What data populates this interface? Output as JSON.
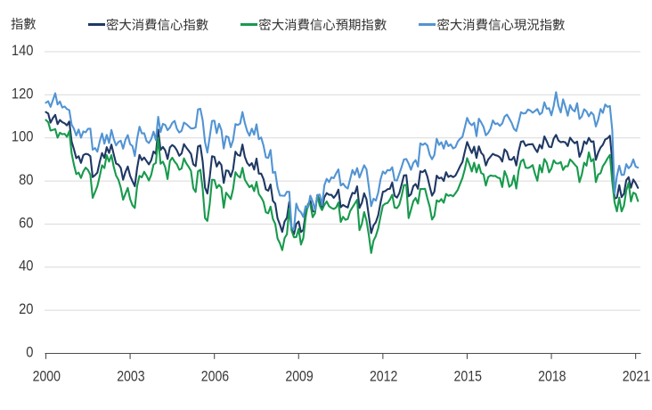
{
  "chart_data": {
    "type": "line",
    "title": "",
    "ylabel": "指數",
    "xlabel": "",
    "frequency": "monthly",
    "x_start": "2000-01",
    "x_end": "2021-02",
    "x_months": [
      "2000-01",
      "2000-02",
      "2000-03",
      "2000-04",
      "2000-05",
      "2000-06",
      "2000-07",
      "2000-08",
      "2000-09",
      "2000-10",
      "2000-11",
      "2000-12",
      "2001-01",
      "2001-02",
      "2001-03",
      "2001-04",
      "2001-05",
      "2001-06",
      "2001-07",
      "2001-08",
      "2001-09",
      "2001-10",
      "2001-11",
      "2001-12",
      "2002-01",
      "2002-02",
      "2002-03",
      "2002-04",
      "2002-05",
      "2002-06",
      "2002-07",
      "2002-08",
      "2002-09",
      "2002-10",
      "2002-11",
      "2002-12",
      "2003-01",
      "2003-02",
      "2003-03",
      "2003-04",
      "2003-05",
      "2003-06",
      "2003-07",
      "2003-08",
      "2003-09",
      "2003-10",
      "2003-11",
      "2003-12",
      "2004-01",
      "2004-02",
      "2004-03",
      "2004-04",
      "2004-05",
      "2004-06",
      "2004-07",
      "2004-08",
      "2004-09",
      "2004-10",
      "2004-11",
      "2004-12",
      "2005-01",
      "2005-02",
      "2005-03",
      "2005-04",
      "2005-05",
      "2005-06",
      "2005-07",
      "2005-08",
      "2005-09",
      "2005-10",
      "2005-11",
      "2005-12",
      "2006-01",
      "2006-02",
      "2006-03",
      "2006-04",
      "2006-05",
      "2006-06",
      "2006-07",
      "2006-08",
      "2006-09",
      "2006-10",
      "2006-11",
      "2006-12",
      "2007-01",
      "2007-02",
      "2007-03",
      "2007-04",
      "2007-05",
      "2007-06",
      "2007-07",
      "2007-08",
      "2007-09",
      "2007-10",
      "2007-11",
      "2007-12",
      "2008-01",
      "2008-02",
      "2008-03",
      "2008-04",
      "2008-05",
      "2008-06",
      "2008-07",
      "2008-08",
      "2008-09",
      "2008-10",
      "2008-11",
      "2008-12",
      "2009-01",
      "2009-02",
      "2009-03",
      "2009-04",
      "2009-05",
      "2009-06",
      "2009-07",
      "2009-08",
      "2009-09",
      "2009-10",
      "2009-11",
      "2009-12",
      "2010-01",
      "2010-02",
      "2010-03",
      "2010-04",
      "2010-05",
      "2010-06",
      "2010-07",
      "2010-08",
      "2010-09",
      "2010-10",
      "2010-11",
      "2010-12",
      "2011-01",
      "2011-02",
      "2011-03",
      "2011-04",
      "2011-05",
      "2011-06",
      "2011-07",
      "2011-08",
      "2011-09",
      "2011-10",
      "2011-11",
      "2011-12",
      "2012-01",
      "2012-02",
      "2012-03",
      "2012-04",
      "2012-05",
      "2012-06",
      "2012-07",
      "2012-08",
      "2012-09",
      "2012-10",
      "2012-11",
      "2012-12",
      "2013-01",
      "2013-02",
      "2013-03",
      "2013-04",
      "2013-05",
      "2013-06",
      "2013-07",
      "2013-08",
      "2013-09",
      "2013-10",
      "2013-11",
      "2013-12",
      "2014-01",
      "2014-02",
      "2014-03",
      "2014-04",
      "2014-05",
      "2014-06",
      "2014-07",
      "2014-08",
      "2014-09",
      "2014-10",
      "2014-11",
      "2014-12",
      "2015-01",
      "2015-02",
      "2015-03",
      "2015-04",
      "2015-05",
      "2015-06",
      "2015-07",
      "2015-08",
      "2015-09",
      "2015-10",
      "2015-11",
      "2015-12",
      "2016-01",
      "2016-02",
      "2016-03",
      "2016-04",
      "2016-05",
      "2016-06",
      "2016-07",
      "2016-08",
      "2016-09",
      "2016-10",
      "2016-11",
      "2016-12",
      "2017-01",
      "2017-02",
      "2017-03",
      "2017-04",
      "2017-05",
      "2017-06",
      "2017-07",
      "2017-08",
      "2017-09",
      "2017-10",
      "2017-11",
      "2017-12",
      "2018-01",
      "2018-02",
      "2018-03",
      "2018-04",
      "2018-05",
      "2018-06",
      "2018-07",
      "2018-08",
      "2018-09",
      "2018-10",
      "2018-11",
      "2018-12",
      "2019-01",
      "2019-02",
      "2019-03",
      "2019-04",
      "2019-05",
      "2019-06",
      "2019-07",
      "2019-08",
      "2019-09",
      "2019-10",
      "2019-11",
      "2019-12",
      "2020-01",
      "2020-02",
      "2020-03",
      "2020-04",
      "2020-05",
      "2020-06",
      "2020-07",
      "2020-08",
      "2020-09",
      "2020-10",
      "2020-11",
      "2020-12",
      "2021-01",
      "2021-02"
    ],
    "x_tick_labels": [
      "2000",
      "2003",
      "2006",
      "2009",
      "2012",
      "2015",
      "2018",
      "2021"
    ],
    "y_ticks": [
      0,
      20,
      40,
      60,
      80,
      100,
      120,
      140
    ],
    "ylim": [
      0,
      140
    ],
    "grid": "horizontal",
    "legend_position": "top",
    "series": [
      {
        "name": "密大消費信心指數",
        "slug": "sentiment-index",
        "color": "#1F3864",
        "values": [
          112.0,
          111.3,
          107.1,
          109.2,
          110.7,
          106.4,
          108.3,
          107.3,
          106.8,
          105.8,
          107.6,
          98.4,
          94.7,
          90.6,
          91.5,
          88.4,
          92.0,
          92.6,
          92.4,
          91.5,
          81.8,
          82.7,
          83.9,
          88.8,
          93.0,
          90.7,
          95.7,
          93.0,
          96.9,
          92.4,
          88.1,
          87.6,
          86.1,
          80.6,
          84.2,
          86.7,
          82.4,
          79.9,
          77.6,
          86.0,
          92.1,
          89.7,
          90.9,
          89.3,
          87.7,
          89.6,
          93.7,
          92.6,
          103.8,
          94.4,
          95.8,
          94.2,
          90.2,
          95.6,
          96.7,
          95.9,
          94.2,
          91.7,
          92.8,
          97.1,
          95.5,
          94.1,
          92.6,
          87.7,
          86.9,
          96.0,
          96.5,
          89.1,
          76.9,
          74.2,
          81.6,
          91.5,
          91.2,
          86.7,
          88.9,
          87.4,
          79.1,
          84.9,
          84.7,
          82.0,
          85.4,
          93.6,
          92.1,
          91.7,
          96.9,
          91.3,
          88.4,
          87.1,
          88.3,
          85.3,
          90.4,
          83.4,
          83.4,
          80.9,
          76.1,
          75.5,
          78.4,
          70.8,
          69.5,
          62.6,
          59.8,
          56.4,
          61.2,
          63.0,
          70.3,
          57.6,
          55.3,
          60.1,
          61.2,
          56.3,
          57.3,
          65.1,
          68.7,
          70.8,
          66.0,
          65.7,
          73.5,
          70.6,
          67.4,
          72.5,
          74.4,
          73.6,
          73.6,
          72.2,
          73.6,
          76.0,
          67.8,
          68.9,
          68.2,
          67.7,
          71.6,
          74.5,
          74.2,
          77.5,
          67.5,
          69.8,
          74.3,
          71.5,
          63.7,
          55.8,
          59.4,
          60.9,
          64.1,
          69.9,
          75.0,
          75.3,
          76.2,
          76.4,
          79.3,
          73.2,
          72.3,
          74.3,
          78.3,
          82.6,
          82.7,
          72.9,
          73.8,
          77.6,
          78.6,
          76.4,
          84.5,
          84.1,
          85.1,
          82.1,
          77.5,
          73.2,
          75.1,
          82.5,
          81.2,
          81.6,
          80.0,
          84.1,
          81.9,
          82.5,
          81.8,
          82.5,
          84.6,
          86.9,
          88.8,
          93.6,
          98.1,
          95.4,
          93.0,
          95.9,
          90.7,
          96.1,
          93.1,
          91.9,
          87.2,
          90.0,
          91.3,
          92.6,
          92.0,
          91.7,
          91.0,
          89.0,
          94.7,
          93.5,
          90.0,
          89.8,
          91.2,
          87.2,
          93.8,
          98.2,
          98.5,
          96.3,
          96.9,
          97.0,
          97.1,
          95.0,
          93.4,
          96.8,
          95.1,
          100.7,
          98.5,
          95.9,
          95.7,
          99.7,
          101.4,
          98.8,
          98.0,
          98.2,
          97.9,
          96.2,
          100.1,
          98.6,
          97.5,
          98.3,
          91.2,
          93.8,
          98.4,
          97.2,
          100.0,
          98.2,
          98.4,
          89.8,
          93.2,
          95.5,
          96.8,
          99.3,
          99.8,
          101.0,
          89.1,
          71.8,
          72.3,
          78.1,
          72.5,
          74.1,
          80.4,
          81.8,
          76.9,
          80.7,
          79.0,
          76.8
        ]
      },
      {
        "name": "密大消費信心預期指數",
        "slug": "expectations-index",
        "color": "#189A4D",
        "values": [
          108.3,
          107.3,
          103.4,
          103.7,
          104.1,
          100.1,
          102.4,
          101.7,
          101.9,
          100.5,
          103.1,
          92.9,
          87.5,
          83.2,
          83.9,
          81.4,
          84.4,
          86.2,
          85.1,
          82.9,
          72.2,
          74.8,
          77.6,
          82.2,
          87.3,
          86.0,
          92.0,
          89.0,
          92.0,
          86.6,
          82.5,
          80.6,
          76.9,
          71.3,
          74.1,
          76.8,
          71.6,
          68.7,
          67.5,
          77.7,
          82.4,
          81.7,
          84.3,
          82.5,
          80.2,
          82.8,
          87.6,
          88.4,
          100.0,
          88.0,
          89.0,
          86.4,
          80.9,
          89.2,
          90.8,
          89.0,
          87.7,
          85.2,
          85.8,
          90.5,
          88.2,
          86.6,
          84.7,
          76.6,
          74.9,
          84.5,
          85.2,
          76.4,
          62.8,
          61.5,
          69.1,
          80.6,
          80.5,
          76.7,
          78.2,
          76.9,
          67.6,
          74.6,
          73.2,
          71.6,
          76.3,
          84.1,
          82.5,
          81.6,
          86.1,
          80.7,
          78.8,
          77.1,
          78.1,
          75.3,
          79.6,
          73.9,
          72.4,
          70.3,
          65.5,
          65.0,
          68.1,
          62.4,
          60.1,
          53.3,
          51.1,
          47.9,
          53.5,
          55.3,
          67.2,
          57.0,
          53.9,
          54.0,
          57.8,
          50.5,
          53.5,
          63.1,
          69.4,
          69.2,
          63.2,
          65.0,
          73.5,
          68.6,
          66.5,
          68.9,
          70.5,
          68.3,
          67.5,
          67.0,
          67.7,
          70.0,
          61.0,
          63.4,
          62.0,
          62.4,
          66.0,
          67.8,
          69.5,
          71.3,
          57.2,
          60.0,
          65.6,
          61.6,
          54.9,
          46.6,
          52.3,
          54.5,
          58.1,
          63.5,
          68.6,
          69.5,
          69.8,
          71.4,
          73.6,
          67.7,
          67.4,
          68.9,
          73.0,
          78.1,
          78.2,
          62.8,
          66.6,
          70.6,
          72.1,
          69.5,
          76.3,
          76.3,
          76.4,
          72.0,
          68.1,
          62.1,
          63.8,
          71.0,
          70.4,
          71.6,
          69.9,
          74.0,
          73.1,
          73.5,
          72.9,
          74.3,
          75.9,
          78.7,
          81.4,
          85.4,
          90.6,
          87.7,
          84.4,
          88.5,
          84.0,
          87.6,
          83.7,
          83.1,
          77.9,
          81.8,
          82.6,
          82.3,
          82.4,
          81.6,
          81.3,
          77.2,
          84.6,
          82.0,
          77.3,
          78.3,
          82.5,
          76.5,
          84.8,
          89.1,
          90.0,
          86.2,
          86.0,
          86.5,
          87.4,
          83.3,
          80.1,
          87.4,
          84.0,
          90.2,
          88.5,
          84.0,
          85.8,
          89.6,
          88.2,
          88.1,
          88.8,
          85.1,
          86.9,
          86.8,
          90.0,
          88.9,
          87.6,
          86.4,
          79.5,
          83.0,
          88.5,
          87.1,
          93.3,
          89.1,
          90.2,
          79.5,
          83.0,
          83.6,
          86.9,
          88.5,
          90.5,
          92.1,
          79.7,
          70.1,
          65.9,
          72.3,
          65.9,
          68.5,
          75.6,
          79.2,
          70.5,
          74.6,
          74.0,
          70.7
        ]
      },
      {
        "name": "密大消費信心現況指數",
        "slug": "current-conditions-index",
        "color": "#5294D3",
        "values": [
          116.3,
          117.0,
          114.4,
          117.5,
          120.7,
          115.5,
          116.9,
          114.1,
          114.6,
          113.4,
          112.9,
          106.2,
          104.2,
          101.1,
          103.9,
          100.1,
          103.0,
          102.6,
          104.2,
          104.3,
          94.5,
          95.3,
          93.6,
          98.3,
          102.1,
          97.3,
          101.4,
          97.6,
          103.7,
          99.5,
          96.5,
          98.1,
          98.7,
          95.0,
          99.1,
          101.3,
          97.1,
          96.2,
          91.6,
          99.6,
          105.2,
          102.1,
          102.2,
          98.6,
          97.6,
          99.4,
          102.9,
          99.0,
          109.8,
          102.7,
          106.5,
          106.0,
          103.6,
          104.8,
          106.9,
          107.9,
          104.2,
          102.5,
          103.3,
          107.1,
          106.4,
          105.4,
          104.4,
          104.4,
          104.9,
          113.2,
          113.5,
          108.2,
          98.1,
          93.2,
          100.4,
          107.9,
          108.0,
          102.2,
          106.6,
          103.6,
          95.1,
          100.8,
          100.3,
          95.7,
          99.0,
          106.4,
          106.0,
          106.6,
          112.0,
          107.0,
          103.2,
          101.0,
          104.3,
          101.5,
          106.3,
          99.4,
          100.2,
          96.4,
          91.0,
          90.7,
          94.4,
          83.8,
          84.2,
          77.0,
          73.3,
          73.2,
          73.1,
          75.0,
          75.0,
          58.4,
          57.5,
          69.5,
          66.5,
          65.5,
          63.3,
          68.3,
          67.7,
          73.2,
          70.5,
          66.6,
          73.4,
          73.7,
          68.8,
          78.0,
          81.0,
          79.5,
          81.7,
          81.3,
          83.5,
          85.4,
          77.9,
          78.8,
          77.3,
          76.5,
          80.8,
          85.1,
          82.9,
          86.0,
          81.6,
          84.4,
          87.3,
          85.4,
          77.3,
          68.3,
          71.8,
          70.9,
          74.6,
          80.8,
          84.4,
          83.4,
          85.1,
          84.9,
          86.4,
          80.4,
          80.2,
          83.3,
          86.5,
          90.0,
          90.2,
          88.1,
          85.2,
          88.4,
          89.7,
          86.7,
          97.5,
          96.7,
          97.5,
          96.5,
          92.2,
          90.1,
          92.1,
          99.6,
          96.7,
          98.0,
          95.0,
          98.6,
          96.2,
          97.0,
          95.1,
          95.7,
          98.3,
          99.6,
          100.5,
          104.8,
          109.3,
          106.9,
          105.9,
          107.0,
          100.8,
          108.9,
          107.2,
          105.1,
          101.2,
          102.3,
          104.3,
          108.1,
          106.4,
          106.8,
          105.6,
          106.7,
          109.9,
          110.8,
          109.0,
          107.0,
          104.2,
          103.2,
          107.3,
          111.9,
          111.3,
          111.5,
          113.2,
          112.7,
          111.7,
          112.5,
          113.4,
          110.9,
          111.7,
          116.5,
          113.5,
          113.8,
          110.5,
          114.9,
          121.2,
          114.9,
          111.8,
          117.9,
          114.4,
          110.3,
          115.2,
          113.1,
          112.3,
          116.1,
          108.8,
          110.0,
          113.3,
          112.3,
          110.0,
          111.9,
          110.7,
          105.3,
          108.5,
          113.4,
          111.6,
          115.5,
          114.4,
          114.8,
          103.7,
          74.3,
          82.3,
          87.1,
          82.8,
          82.9,
          87.8,
          85.9,
          87.0,
          90.0,
          86.7,
          86.2
        ]
      }
    ],
    "colors": {
      "gridline": "#D9D9D9",
      "axis": "#4d4d4d",
      "tick_text": "#383838",
      "legend_text": "#333333"
    }
  }
}
